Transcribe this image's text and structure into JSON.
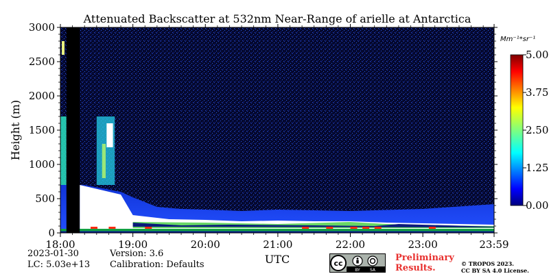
{
  "chart_data": {
    "type": "heatmap",
    "title": "Attenuated Backscatter at 532nm Near-Range of arielle at Antarctica",
    "xlabel": "UTC",
    "ylabel": "Height (m)",
    "x_ticks": [
      "18:00",
      "19:00",
      "20:00",
      "21:00",
      "22:00",
      "23:00",
      "23:59"
    ],
    "y_ticks": [
      "0",
      "500",
      "1000",
      "1500",
      "2000",
      "2500",
      "3000"
    ],
    "xlim": [
      "18:00",
      "23:59"
    ],
    "ylim": [
      0,
      3000
    ],
    "colorbar": {
      "unit_label": "Mm⁻¹*sr⁻¹",
      "ticks": [
        "0.00",
        "1.25",
        "2.50",
        "3.75",
        "5.00"
      ],
      "range": [
        0,
        5
      ],
      "colormap": "jet"
    },
    "features": {
      "data_gap": [
        "18:05",
        "18:16"
      ],
      "boundary_layer_top_m": [
        {
          "time": "18:00",
          "height": 700
        },
        {
          "time": "18:20",
          "height": 700
        },
        {
          "time": "18:50",
          "height": 600
        },
        {
          "time": "19:00",
          "height": 520
        },
        {
          "time": "19:20",
          "height": 380
        },
        {
          "time": "19:40",
          "height": 350
        },
        {
          "time": "20:00",
          "height": 340
        },
        {
          "time": "20:30",
          "height": 320
        },
        {
          "time": "21:00",
          "height": 340
        },
        {
          "time": "22:00",
          "height": 320
        },
        {
          "time": "23:00",
          "height": 350
        },
        {
          "time": "23:59",
          "height": 420
        }
      ],
      "elevated_layer": {
        "time_start": "18:30",
        "time_end": "18:45",
        "height_range": [
          700,
          1700
        ]
      }
    }
  },
  "meta": {
    "date": "2023-01-30",
    "lc": "LC: 5.03e+13",
    "version": "Version: 3.6",
    "calibration": "Calibration: Defaults",
    "cc_badge": {
      "left": "cc",
      "by": "BY",
      "sa": "SA"
    },
    "preliminary_line1": "Preliminary",
    "preliminary_line2": "Results.",
    "copyright_line1": "© TROPOS 2023.",
    "copyright_line2": "CC BY SA 4.0 License."
  },
  "colors": {
    "background_dark": "#05082e",
    "noise_blue": "#1f44d8",
    "preliminary_red": "#e8312f"
  }
}
